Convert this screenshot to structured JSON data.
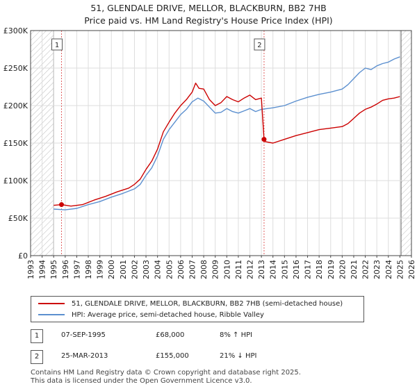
{
  "title_line1": "51, GLENDALE DRIVE, MELLOR, BLACKBURN, BB2 7HB",
  "title_line2": "Price paid vs. HM Land Registry's House Price Index (HPI)",
  "colors": {
    "property": "#cc0000",
    "hpi": "#5b8fcf",
    "grid": "#dddddd",
    "hatch": "#bbbbbb"
  },
  "chart_data": {
    "type": "line",
    "xlim": [
      1993,
      2026
    ],
    "ylim": [
      0,
      300000
    ],
    "x_ticks": [
      1993,
      1994,
      1995,
      1996,
      1997,
      1998,
      1999,
      2000,
      2001,
      2002,
      2003,
      2004,
      2005,
      2006,
      2007,
      2008,
      2009,
      2010,
      2011,
      2012,
      2013,
      2014,
      2015,
      2016,
      2017,
      2018,
      2019,
      2020,
      2021,
      2022,
      2023,
      2024,
      2025,
      2026
    ],
    "y_ticks": [
      {
        "value": 0,
        "label": "£0"
      },
      {
        "value": 50000,
        "label": "£50K"
      },
      {
        "value": 100000,
        "label": "£100K"
      },
      {
        "value": 150000,
        "label": "£150K"
      },
      {
        "value": 200000,
        "label": "£200K"
      },
      {
        "value": 250000,
        "label": "£250K"
      },
      {
        "value": 300000,
        "label": "£300K"
      }
    ],
    "hatched_ranges": [
      [
        1993,
        1995.0
      ],
      [
        2025.1,
        2026
      ]
    ],
    "series": [
      {
        "name": "51, GLENDALE DRIVE, MELLOR, BLACKBURN, BB2 7HB (semi-detached house)",
        "color": "#cc0000",
        "x": [
          1995.0,
          1995.68,
          1996.5,
          1997.5,
          1998.5,
          1999.5,
          2000.5,
          2001.5,
          2002.0,
          2002.5,
          2003.0,
          2003.5,
          2004.0,
          2004.5,
          2005.0,
          2005.5,
          2006.0,
          2006.5,
          2007.0,
          2007.3,
          2007.6,
          2008.0,
          2008.5,
          2009.0,
          2009.5,
          2010.0,
          2010.5,
          2011.0,
          2011.5,
          2012.0,
          2012.5,
          2013.0,
          2013.23,
          2013.3,
          2014.0,
          2015.0,
          2016.0,
          2017.0,
          2018.0,
          2019.0,
          2020.0,
          2020.5,
          2021.0,
          2021.5,
          2022.0,
          2022.5,
          2023.0,
          2023.5,
          2024.0,
          2024.5,
          2025.0
        ],
        "y": [
          67000,
          68000,
          66000,
          68000,
          74000,
          79000,
          85000,
          90000,
          95000,
          102000,
          115000,
          126000,
          142000,
          165000,
          178000,
          190000,
          200000,
          208000,
          218000,
          230000,
          223000,
          222000,
          208000,
          200000,
          204000,
          212000,
          208000,
          205000,
          210000,
          214000,
          208000,
          210000,
          155000,
          152000,
          150000,
          155000,
          160000,
          164000,
          168000,
          170000,
          172000,
          176000,
          183000,
          190000,
          195000,
          198000,
          202000,
          207000,
          209000,
          210000,
          212000
        ]
      },
      {
        "name": "HPI: Average price, semi-detached house, Ribble Valley",
        "color": "#5b8fcf",
        "x": [
          1995.0,
          1996.0,
          1997.0,
          1998.0,
          1999.0,
          2000.0,
          2001.0,
          2002.0,
          2002.5,
          2003.0,
          2003.5,
          2004.0,
          2004.5,
          2005.0,
          2005.5,
          2006.0,
          2006.5,
          2007.0,
          2007.5,
          2008.0,
          2008.5,
          2009.0,
          2009.5,
          2010.0,
          2010.5,
          2011.0,
          2011.5,
          2012.0,
          2012.5,
          2013.0,
          2013.5,
          2014.0,
          2015.0,
          2016.0,
          2017.0,
          2018.0,
          2019.0,
          2020.0,
          2020.5,
          2021.0,
          2021.5,
          2022.0,
          2022.5,
          2023.0,
          2023.5,
          2024.0,
          2024.5,
          2025.0
        ],
        "y": [
          62000,
          61000,
          63000,
          68000,
          72000,
          78000,
          83000,
          89000,
          95000,
          107000,
          117000,
          133000,
          155000,
          168000,
          178000,
          188000,
          195000,
          205000,
          210000,
          206000,
          198000,
          190000,
          191000,
          196000,
          192000,
          190000,
          193000,
          196000,
          192000,
          195000,
          196000,
          197000,
          200000,
          206000,
          211000,
          215000,
          218000,
          222000,
          228000,
          236000,
          244000,
          250000,
          248000,
          253000,
          256000,
          258000,
          262000,
          265000
        ]
      }
    ],
    "markers": [
      {
        "label": "1",
        "x": 1995.68,
        "y": 68000
      },
      {
        "label": "2",
        "x": 2013.23,
        "y": 155000
      }
    ]
  },
  "legend": {
    "property": "51, GLENDALE DRIVE, MELLOR, BLACKBURN, BB2 7HB (semi-detached house)",
    "hpi": "HPI: Average price, semi-detached house, Ribble Valley"
  },
  "sales": [
    {
      "num": "1",
      "date": "07-SEP-1995",
      "price": "£68,000",
      "hpi": "8% ↑ HPI"
    },
    {
      "num": "2",
      "date": "25-MAR-2013",
      "price": "£155,000",
      "hpi": "21% ↓ HPI"
    }
  ],
  "footer_line1": "Contains HM Land Registry data © Crown copyright and database right 2025.",
  "footer_line2": "This data is licensed under the Open Government Licence v3.0."
}
